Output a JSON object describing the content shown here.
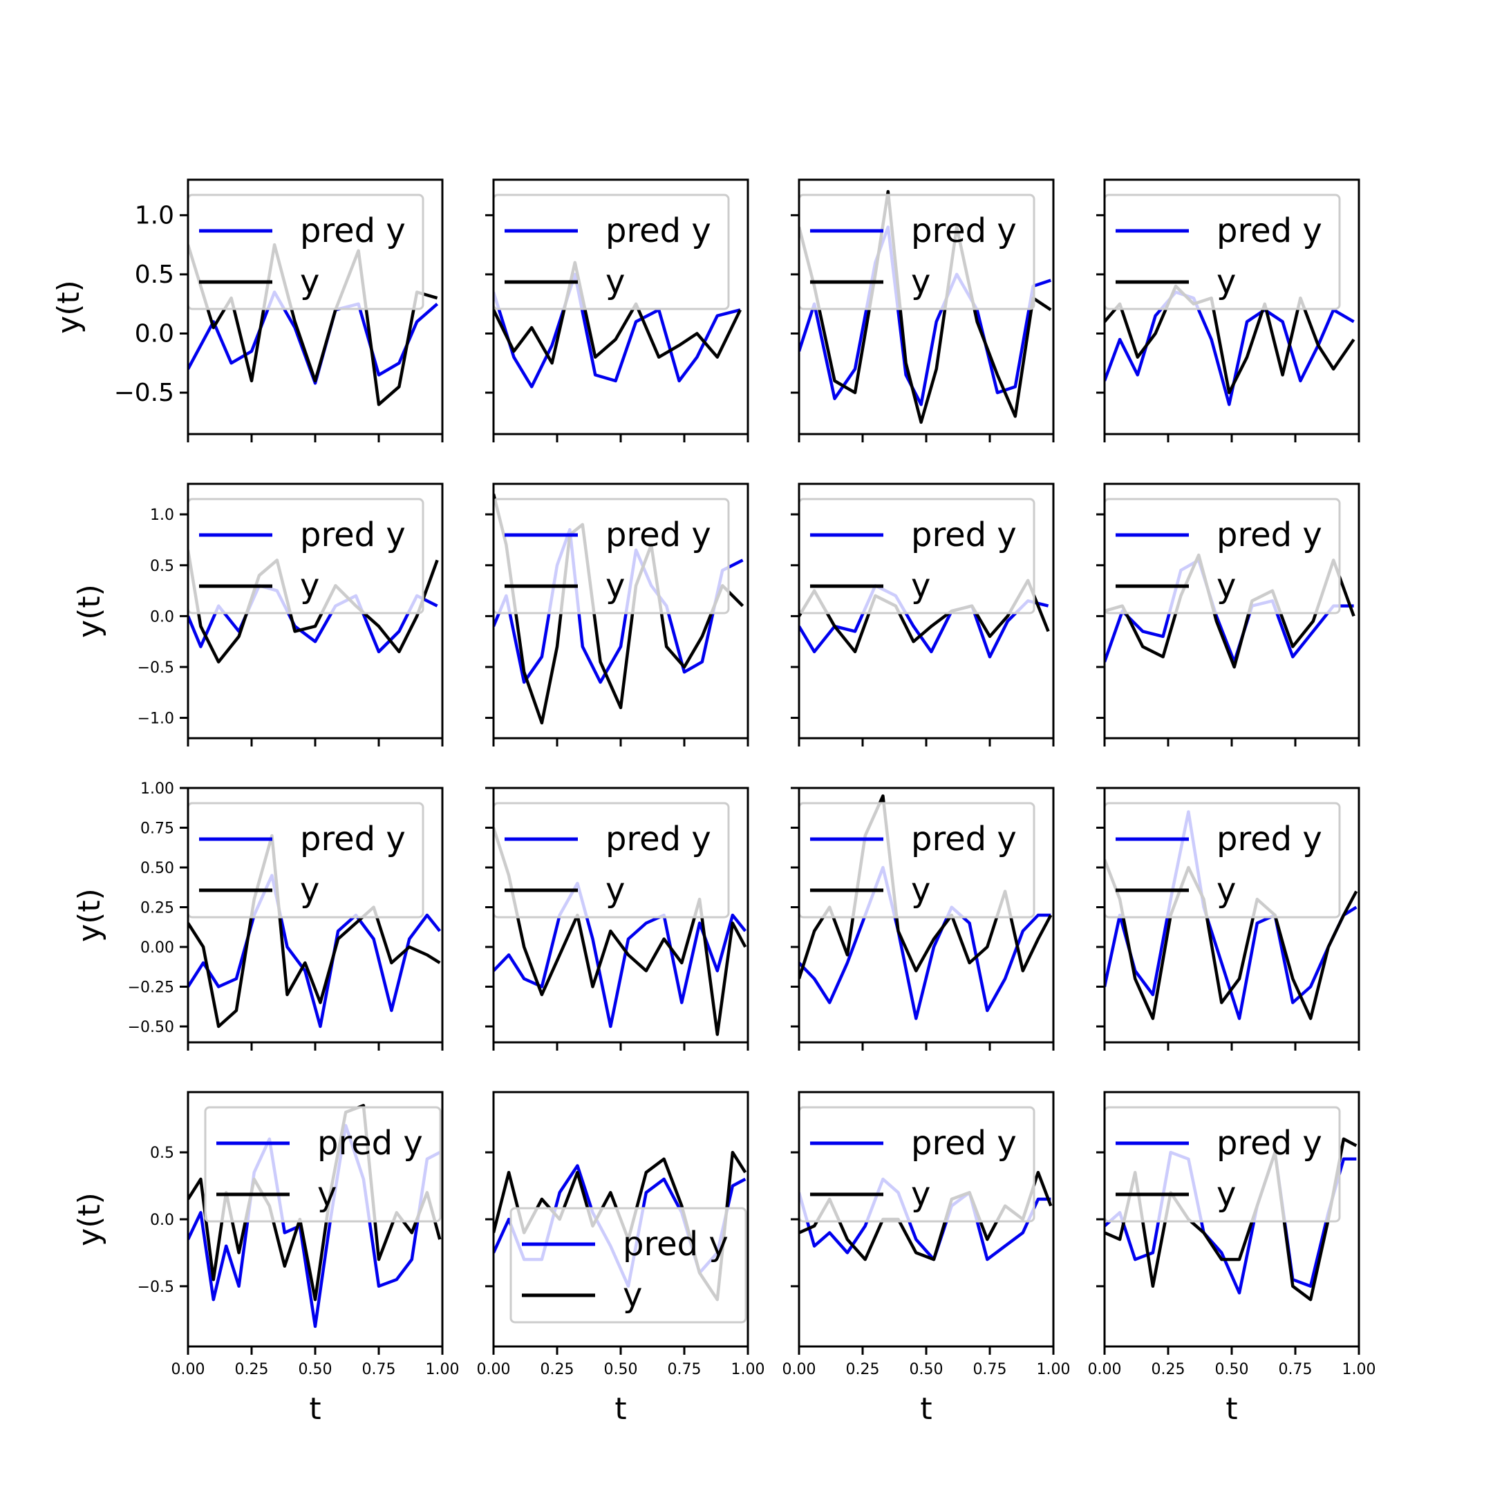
{
  "chart_data": {
    "type": "line",
    "layout": "4x4 grid of subplots",
    "x_label": "t",
    "y_label": "y(t)",
    "legend_labels": [
      "pred y",
      "y"
    ],
    "series_colors": {
      "pred y": "#0000ee",
      "y": "#000000"
    },
    "xlim": [
      0,
      1
    ],
    "x_ticks": [
      0.0,
      0.25,
      0.5,
      0.75,
      1.0
    ],
    "x_tick_labels": [
      "0.00",
      "0.25",
      "0.50",
      "0.75",
      "1.00"
    ],
    "rows": [
      {
        "ylim": [
          -0.85,
          1.3
        ],
        "y_ticks": [
          -0.5,
          0.0,
          0.5,
          1.0
        ],
        "y_tick_labels": [
          "−0.5",
          "0.0",
          "0.5",
          "1.0"
        ],
        "tick_style": "large"
      },
      {
        "ylim": [
          -1.2,
          1.3
        ],
        "y_ticks": [
          -1.0,
          -0.5,
          0.0,
          0.5,
          1.0
        ],
        "y_tick_labels": [
          "−1.0",
          "−0.5",
          "0.0",
          "0.5",
          "1.0"
        ],
        "tick_style": "small"
      },
      {
        "ylim": [
          -0.6,
          1.0
        ],
        "y_ticks": [
          -0.5,
          -0.25,
          0.0,
          0.25,
          0.5,
          0.75,
          1.0
        ],
        "y_tick_labels": [
          "−0.50",
          "−0.25",
          "0.00",
          "0.25",
          "0.50",
          "0.75",
          "1.00"
        ],
        "tick_style": "small"
      },
      {
        "ylim": [
          -0.95,
          0.95
        ],
        "y_ticks": [
          -0.5,
          0.0,
          0.5
        ],
        "y_tick_labels": [
          "−0.5",
          "0.0",
          "0.5"
        ],
        "tick_style": "small"
      }
    ],
    "panels": [
      {
        "row": 0,
        "col": 0,
        "legend_pos": "upper-center",
        "x": [
          0.0,
          0.1,
          0.17,
          0.25,
          0.34,
          0.42,
          0.5,
          0.58,
          0.67,
          0.75,
          0.83,
          0.9,
          0.98
        ],
        "pred": [
          -0.3,
          0.1,
          -0.25,
          -0.15,
          0.35,
          0.05,
          -0.42,
          0.2,
          0.25,
          -0.35,
          -0.25,
          0.1,
          0.25
        ],
        "y": [
          0.75,
          0.05,
          0.3,
          -0.4,
          0.75,
          0.1,
          -0.4,
          0.2,
          0.7,
          -0.6,
          -0.45,
          0.35,
          0.3
        ]
      },
      {
        "row": 0,
        "col": 1,
        "legend_pos": "upper-center",
        "x": [
          0.0,
          0.08,
          0.15,
          0.23,
          0.32,
          0.4,
          0.48,
          0.56,
          0.65,
          0.73,
          0.8,
          0.88,
          0.97
        ],
        "pred": [
          0.35,
          -0.2,
          -0.45,
          -0.1,
          0.5,
          -0.35,
          -0.4,
          0.1,
          0.2,
          -0.4,
          -0.2,
          0.15,
          0.2
        ],
        "y": [
          0.2,
          -0.15,
          0.05,
          -0.25,
          0.6,
          -0.2,
          -0.05,
          0.25,
          -0.2,
          -0.1,
          0.0,
          -0.2,
          0.2
        ]
      },
      {
        "row": 0,
        "col": 2,
        "legend_pos": "upper-center",
        "x": [
          0.0,
          0.06,
          0.14,
          0.22,
          0.3,
          0.35,
          0.42,
          0.48,
          0.54,
          0.62,
          0.7,
          0.78,
          0.85,
          0.92,
          0.99
        ],
        "pred": [
          -0.15,
          0.25,
          -0.55,
          -0.3,
          0.6,
          0.9,
          -0.35,
          -0.6,
          0.1,
          0.5,
          0.2,
          -0.5,
          -0.45,
          0.4,
          0.45
        ],
        "y": [
          0.9,
          0.4,
          -0.4,
          -0.5,
          0.5,
          1.2,
          -0.25,
          -0.75,
          -0.3,
          0.9,
          0.1,
          -0.35,
          -0.7,
          0.3,
          0.2
        ]
      },
      {
        "row": 0,
        "col": 3,
        "legend_pos": "upper-center",
        "x": [
          0.0,
          0.06,
          0.13,
          0.2,
          0.28,
          0.35,
          0.42,
          0.49,
          0.56,
          0.63,
          0.7,
          0.77,
          0.84,
          0.9,
          0.98
        ],
        "pred": [
          -0.4,
          -0.05,
          -0.35,
          0.15,
          0.35,
          0.3,
          -0.05,
          -0.6,
          0.1,
          0.2,
          0.1,
          -0.4,
          -0.1,
          0.2,
          0.1
        ],
        "y": [
          0.1,
          0.25,
          -0.2,
          0.0,
          0.4,
          0.25,
          0.3,
          -0.5,
          -0.2,
          0.25,
          -0.35,
          0.3,
          -0.1,
          -0.3,
          -0.05
        ]
      },
      {
        "row": 1,
        "col": 0,
        "legend_pos": "upper-center",
        "x": [
          0.0,
          0.05,
          0.12,
          0.2,
          0.28,
          0.35,
          0.42,
          0.5,
          0.58,
          0.66,
          0.75,
          0.83,
          0.9,
          0.98
        ],
        "pred": [
          0.0,
          -0.3,
          0.1,
          -0.15,
          0.3,
          0.25,
          -0.1,
          -0.25,
          0.1,
          0.2,
          -0.35,
          -0.15,
          0.2,
          0.1
        ],
        "y": [
          0.65,
          -0.1,
          -0.45,
          -0.2,
          0.4,
          0.55,
          -0.15,
          -0.1,
          0.3,
          0.1,
          -0.1,
          -0.35,
          0.0,
          0.55
        ]
      },
      {
        "row": 1,
        "col": 1,
        "legend_pos": "upper-center",
        "x": [
          0.0,
          0.05,
          0.12,
          0.19,
          0.25,
          0.3,
          0.35,
          0.42,
          0.5,
          0.56,
          0.62,
          0.68,
          0.75,
          0.82,
          0.9,
          0.98
        ],
        "pred": [
          -0.1,
          0.2,
          -0.65,
          -0.4,
          0.5,
          0.85,
          -0.3,
          -0.65,
          -0.3,
          0.65,
          0.3,
          0.1,
          -0.55,
          -0.45,
          0.45,
          0.55
        ],
        "y": [
          1.2,
          0.7,
          -0.55,
          -1.05,
          -0.3,
          0.8,
          0.9,
          -0.45,
          -0.9,
          0.3,
          0.7,
          -0.3,
          -0.5,
          -0.2,
          0.3,
          0.1
        ]
      },
      {
        "row": 1,
        "col": 2,
        "legend_pos": "upper-center",
        "x": [
          0.0,
          0.06,
          0.14,
          0.22,
          0.3,
          0.38,
          0.45,
          0.52,
          0.6,
          0.68,
          0.75,
          0.82,
          0.9,
          0.98
        ],
        "pred": [
          -0.1,
          -0.35,
          -0.1,
          -0.15,
          0.3,
          0.2,
          -0.1,
          -0.35,
          0.05,
          0.1,
          -0.4,
          -0.05,
          0.15,
          0.1
        ],
        "y": [
          0.0,
          0.25,
          -0.1,
          -0.35,
          0.2,
          0.1,
          -0.25,
          -0.1,
          0.05,
          0.1,
          -0.2,
          0.0,
          0.35,
          -0.15
        ]
      },
      {
        "row": 1,
        "col": 3,
        "legend_pos": "upper-center",
        "x": [
          0.0,
          0.07,
          0.15,
          0.23,
          0.3,
          0.37,
          0.44,
          0.51,
          0.58,
          0.66,
          0.74,
          0.82,
          0.9,
          0.98
        ],
        "pred": [
          -0.45,
          0.05,
          -0.15,
          -0.2,
          0.45,
          0.55,
          0.0,
          -0.45,
          0.1,
          0.15,
          -0.4,
          -0.15,
          0.1,
          0.1
        ],
        "y": [
          0.05,
          0.1,
          -0.3,
          -0.4,
          0.2,
          0.6,
          -0.05,
          -0.5,
          0.15,
          0.25,
          -0.3,
          -0.05,
          0.55,
          0.0
        ]
      },
      {
        "row": 2,
        "col": 0,
        "legend_pos": "upper-center",
        "x": [
          0.0,
          0.06,
          0.12,
          0.19,
          0.26,
          0.33,
          0.39,
          0.46,
          0.52,
          0.59,
          0.66,
          0.73,
          0.8,
          0.87,
          0.94,
          0.99
        ],
        "pred": [
          -0.25,
          -0.1,
          -0.25,
          -0.2,
          0.2,
          0.45,
          0.0,
          -0.15,
          -0.5,
          0.1,
          0.2,
          0.05,
          -0.4,
          0.05,
          0.2,
          0.1
        ],
        "y": [
          0.15,
          0.0,
          -0.5,
          -0.4,
          0.3,
          0.7,
          -0.3,
          -0.1,
          -0.35,
          0.05,
          0.15,
          0.25,
          -0.1,
          0.0,
          -0.05,
          -0.1
        ]
      },
      {
        "row": 2,
        "col": 1,
        "legend_pos": "upper-center",
        "x": [
          0.0,
          0.06,
          0.12,
          0.19,
          0.26,
          0.33,
          0.39,
          0.46,
          0.53,
          0.6,
          0.67,
          0.74,
          0.81,
          0.88,
          0.94,
          0.99
        ],
        "pred": [
          -0.15,
          -0.05,
          -0.2,
          -0.25,
          0.2,
          0.4,
          0.05,
          -0.5,
          0.05,
          0.15,
          0.2,
          -0.35,
          0.15,
          -0.15,
          0.2,
          0.1
        ],
        "y": [
          0.75,
          0.45,
          0.0,
          -0.3,
          -0.05,
          0.2,
          -0.25,
          0.1,
          -0.05,
          -0.15,
          0.05,
          -0.1,
          0.3,
          -0.55,
          0.15,
          0.0
        ]
      },
      {
        "row": 2,
        "col": 2,
        "legend_pos": "upper-center",
        "x": [
          0.0,
          0.06,
          0.12,
          0.19,
          0.26,
          0.33,
          0.39,
          0.46,
          0.53,
          0.6,
          0.67,
          0.74,
          0.81,
          0.88,
          0.94,
          0.99
        ],
        "pred": [
          -0.1,
          -0.2,
          -0.35,
          -0.1,
          0.2,
          0.5,
          0.1,
          -0.45,
          0.0,
          0.25,
          0.15,
          -0.4,
          -0.2,
          0.1,
          0.2,
          0.2
        ],
        "y": [
          -0.2,
          0.1,
          0.25,
          -0.05,
          0.7,
          0.95,
          0.1,
          -0.15,
          0.05,
          0.2,
          -0.1,
          0.0,
          0.35,
          -0.15,
          0.05,
          0.2
        ]
      },
      {
        "row": 2,
        "col": 3,
        "legend_pos": "upper-center",
        "x": [
          0.0,
          0.06,
          0.12,
          0.19,
          0.26,
          0.33,
          0.39,
          0.46,
          0.53,
          0.6,
          0.67,
          0.74,
          0.81,
          0.88,
          0.94,
          0.99
        ],
        "pred": [
          -0.25,
          0.2,
          -0.15,
          -0.3,
          0.3,
          0.85,
          0.25,
          -0.1,
          -0.45,
          0.15,
          0.2,
          -0.35,
          -0.25,
          0.0,
          0.2,
          0.25
        ],
        "y": [
          0.55,
          0.3,
          -0.2,
          -0.45,
          0.2,
          0.5,
          0.3,
          -0.35,
          -0.2,
          0.3,
          0.2,
          -0.2,
          -0.45,
          0.0,
          0.2,
          0.35
        ]
      },
      {
        "row": 3,
        "col": 0,
        "legend_pos": "upper-right",
        "x": [
          0.0,
          0.05,
          0.1,
          0.15,
          0.2,
          0.26,
          0.32,
          0.38,
          0.44,
          0.5,
          0.56,
          0.62,
          0.69,
          0.75,
          0.82,
          0.88,
          0.94,
          0.99
        ],
        "pred": [
          -0.15,
          0.05,
          -0.6,
          -0.2,
          -0.5,
          0.35,
          0.6,
          -0.1,
          -0.05,
          -0.8,
          0.0,
          0.7,
          0.3,
          -0.5,
          -0.45,
          -0.3,
          0.45,
          0.5
        ],
        "y": [
          0.15,
          0.3,
          -0.45,
          0.2,
          -0.25,
          0.3,
          0.1,
          -0.35,
          0.0,
          -0.6,
          0.2,
          0.8,
          0.85,
          -0.3,
          0.05,
          -0.1,
          0.2,
          -0.15
        ]
      },
      {
        "row": 3,
        "col": 1,
        "legend_pos": "lower-center",
        "x": [
          0.0,
          0.06,
          0.12,
          0.19,
          0.26,
          0.33,
          0.39,
          0.46,
          0.53,
          0.6,
          0.67,
          0.74,
          0.81,
          0.88,
          0.94,
          0.99
        ],
        "pred": [
          -0.25,
          0.0,
          -0.3,
          -0.3,
          0.2,
          0.4,
          0.05,
          -0.2,
          -0.5,
          0.2,
          0.3,
          0.05,
          -0.4,
          -0.25,
          0.25,
          0.3
        ],
        "y": [
          -0.1,
          0.35,
          -0.1,
          0.15,
          0.0,
          0.35,
          -0.05,
          0.2,
          -0.15,
          0.35,
          0.45,
          0.1,
          -0.4,
          -0.6,
          0.5,
          0.35
        ]
      },
      {
        "row": 3,
        "col": 2,
        "legend_pos": "upper-center",
        "x": [
          0.0,
          0.06,
          0.12,
          0.19,
          0.26,
          0.33,
          0.39,
          0.46,
          0.53,
          0.6,
          0.67,
          0.74,
          0.81,
          0.88,
          0.94,
          0.99
        ],
        "pred": [
          0.2,
          -0.2,
          -0.1,
          -0.25,
          -0.05,
          0.3,
          0.2,
          -0.15,
          -0.3,
          0.1,
          0.2,
          -0.3,
          -0.2,
          -0.1,
          0.15,
          0.15
        ],
        "y": [
          -0.1,
          -0.05,
          0.15,
          -0.15,
          -0.3,
          0.0,
          0.0,
          -0.25,
          -0.3,
          0.15,
          0.2,
          -0.15,
          0.1,
          0.0,
          0.35,
          0.1
        ]
      },
      {
        "row": 3,
        "col": 3,
        "legend_pos": "upper-center",
        "x": [
          0.0,
          0.06,
          0.12,
          0.19,
          0.26,
          0.33,
          0.39,
          0.46,
          0.53,
          0.6,
          0.67,
          0.74,
          0.81,
          0.88,
          0.94,
          0.99
        ],
        "pred": [
          -0.05,
          0.05,
          -0.3,
          -0.25,
          0.5,
          0.45,
          -0.1,
          -0.25,
          -0.55,
          0.1,
          0.5,
          -0.45,
          -0.5,
          0.05,
          0.45,
          0.45
        ],
        "y": [
          -0.1,
          -0.15,
          0.35,
          -0.5,
          0.2,
          0.0,
          -0.1,
          -0.3,
          -0.3,
          0.1,
          0.5,
          -0.5,
          -0.6,
          0.0,
          0.6,
          0.55
        ]
      }
    ]
  }
}
